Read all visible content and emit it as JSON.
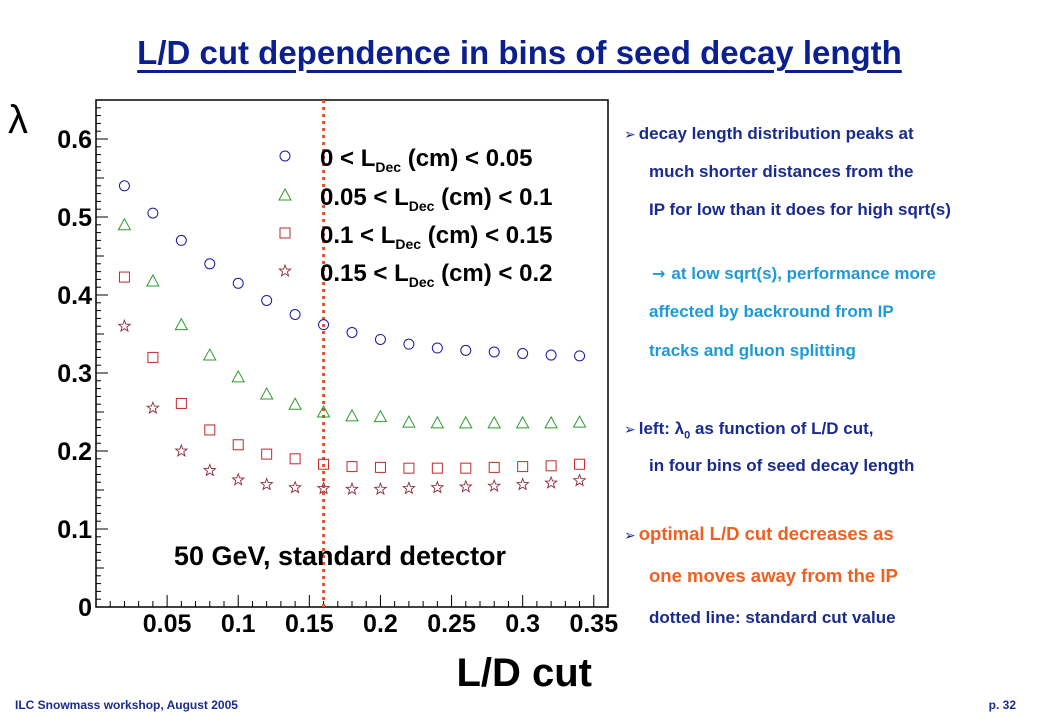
{
  "slide": {
    "title": "L/D cut dependence in bins of seed decay length",
    "footer_left": "ILC Snowmass workshop, August 2005",
    "footer_right": "p. 32"
  },
  "notes": {
    "bullet1_line1": "decay length distribution peaks at",
    "bullet1_line2": "much shorter distances from the",
    "bullet1_line3": "IP for low than it does for high sqrt(s)",
    "sub1_line1": "at low sqrt(s), performance more",
    "sub1_line2": "affected by backround from IP",
    "sub1_line3": "tracks and gluon splitting",
    "bullet2_prefix": "left:",
    "bullet2_symbol": "λ",
    "bullet2_subscript": "0",
    "bullet2_rest": "as function of L/D cut,",
    "bullet2_line2": "in four bins of seed decay length",
    "bullet3_line1": "optimal L/D cut decreases as",
    "bullet3_line2": "one moves away from the IP",
    "bullet3_line3": "dotted line: standard cut value"
  },
  "colors": {
    "title": "#0b1f8f",
    "text_navy": "#1a2b8f",
    "text_cyan": "#1e9ad6",
    "text_orange": "#f06020",
    "cut_line": "#e8502a"
  },
  "chart_data": {
    "type": "scatter",
    "title": "",
    "xlabel": "L/D cut",
    "ylabel": "λ",
    "xlim": [
      0.0,
      0.36
    ],
    "ylim": [
      0.0,
      0.65
    ],
    "xticks": [
      0.05,
      0.1,
      0.15,
      0.2,
      0.25,
      0.3,
      0.35
    ],
    "xtick_labels": [
      "0.05",
      "0.1",
      "0.15",
      "0.2",
      "0.25",
      "0.3",
      "0.35"
    ],
    "yticks": [
      0,
      0.1,
      0.2,
      0.3,
      0.4,
      0.5,
      0.6
    ],
    "ytick_labels": [
      "0",
      "0.1",
      "0.2",
      "0.3",
      "0.4",
      "0.5",
      "0.6"
    ],
    "annotation": "50 GeV, standard detector",
    "cut_value": 0.16,
    "legend_position": "top-right",
    "x": [
      0.02,
      0.04,
      0.06,
      0.08,
      0.1,
      0.12,
      0.14,
      0.16,
      0.18,
      0.2,
      0.22,
      0.24,
      0.26,
      0.28,
      0.3,
      0.32,
      0.34
    ],
    "series": [
      {
        "legend_pre": "0 < L",
        "legend_sub": "Dec",
        "legend_post": " (cm) < 0.05",
        "marker": "circle",
        "color": "#1a1aa0",
        "y": [
          0.54,
          0.505,
          0.47,
          0.44,
          0.415,
          0.393,
          0.375,
          0.362,
          0.352,
          0.343,
          0.337,
          0.332,
          0.329,
          0.327,
          0.325,
          0.323,
          0.322
        ]
      },
      {
        "legend_pre": "0.05 < L",
        "legend_sub": "Dec",
        "legend_post": " (cm) < 0.1",
        "marker": "triangle",
        "color": "#2e9a2e",
        "y": [
          0.49,
          0.418,
          0.362,
          0.323,
          0.295,
          0.273,
          0.26,
          0.25,
          0.245,
          0.244,
          0.237,
          0.236,
          0.236,
          0.236,
          0.236,
          0.236,
          0.237
        ]
      },
      {
        "legend_pre": "0.1 < L",
        "legend_sub": "Dec",
        "legend_post": " (cm) < 0.15",
        "marker": "square",
        "color": "#c0282a",
        "y": [
          0.423,
          0.32,
          0.261,
          0.227,
          0.208,
          0.196,
          0.19,
          0.183,
          0.18,
          0.179,
          0.178,
          0.178,
          0.178,
          0.179,
          0.18,
          0.181,
          0.183
        ]
      },
      {
        "legend_pre": "0.15 < L",
        "legend_sub": "Dec",
        "legend_post": " (cm) < 0.2",
        "marker": "star",
        "color": "#8a2a3a",
        "y": [
          0.36,
          0.255,
          0.2,
          0.175,
          0.163,
          0.157,
          0.153,
          0.152,
          0.151,
          0.151,
          0.152,
          0.153,
          0.154,
          0.155,
          0.157,
          0.159,
          0.162
        ]
      }
    ]
  }
}
